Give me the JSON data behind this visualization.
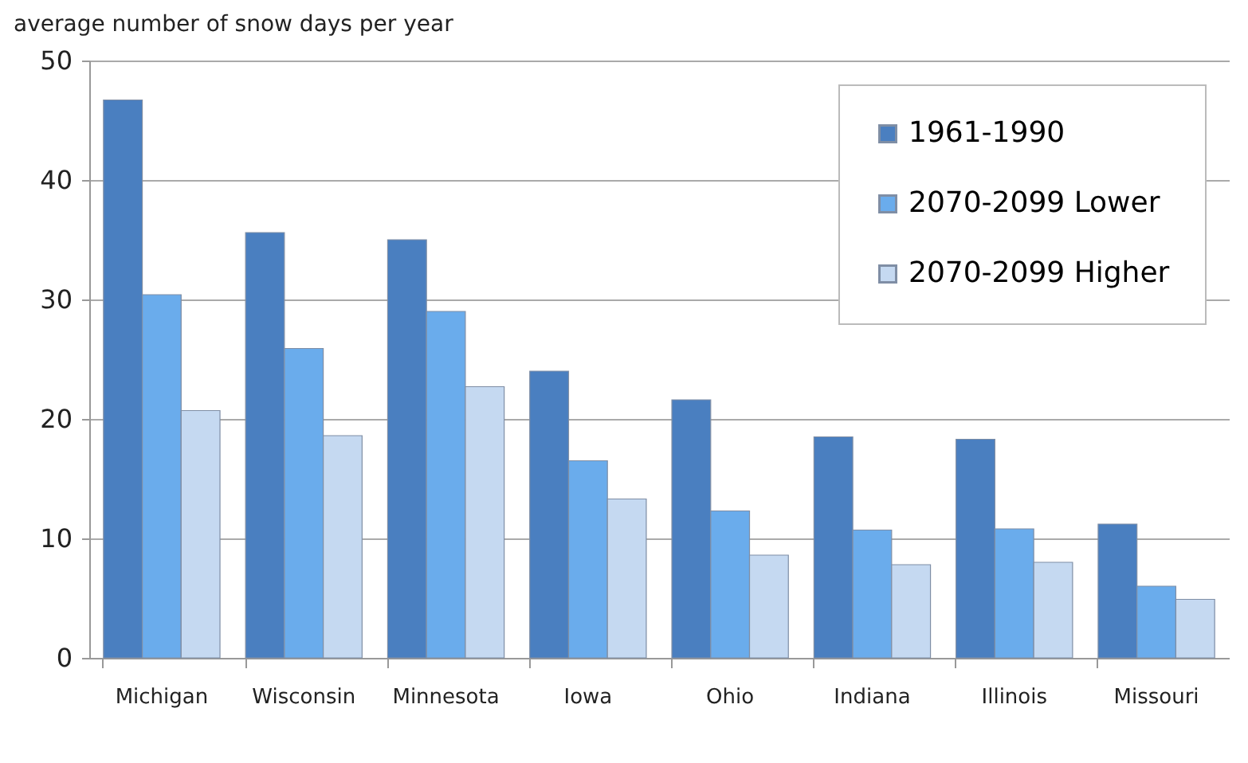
{
  "chart_data": {
    "type": "bar",
    "ylabel": "average number of snow days per year",
    "categories": [
      "Michigan",
      "Wisconsin",
      "Minnesota",
      "Iowa",
      "Ohio",
      "Indiana",
      "Illinois",
      "Missouri"
    ],
    "series": [
      {
        "name": "1961-1990",
        "color": "#4a7fc0",
        "values": [
          46.7,
          35.6,
          35.0,
          24.0,
          21.6,
          18.5,
          18.3,
          11.2
        ]
      },
      {
        "name": "2070-2099 Lower",
        "color": "#6aacec",
        "values": [
          30.4,
          25.9,
          29.0,
          16.5,
          12.3,
          10.7,
          10.8,
          6.0
        ]
      },
      {
        "name": "2070-2099 Higher",
        "color": "#c5d9f1",
        "values": [
          20.7,
          18.6,
          22.7,
          13.3,
          8.6,
          7.8,
          8.0,
          4.9
        ]
      }
    ],
    "ylim": [
      0,
      50
    ],
    "yticks": [
      0,
      10,
      20,
      30,
      40,
      50
    ],
    "grid": "y",
    "legend": "top right"
  }
}
